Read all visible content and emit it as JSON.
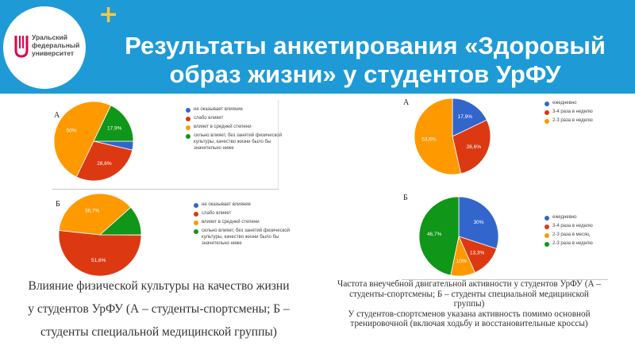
{
  "header": {
    "title_line1": "Результаты анкетирования «Здоровый",
    "title_line2": "образ жизни» у студентов УрФУ",
    "logo_line1": "Уральский",
    "logo_line2": "федеральный",
    "logo_line3": "университет",
    "bg_color": "#1e9ad6"
  },
  "chart_data": [
    {
      "id": "influence-a",
      "type": "pie",
      "panel_label": "А",
      "slices": [
        {
          "label": "не оказывает влияние",
          "value": 3.6,
          "color": "#3366cc",
          "data_label": ""
        },
        {
          "label": "слабо влияет",
          "value": 28.6,
          "color": "#dc3912",
          "data_label": "28,6%"
        },
        {
          "label": "влияет в средней степени",
          "value": 50,
          "color": "#ff9900",
          "data_label": "50%"
        },
        {
          "label": "сильно влияет, без занятий физической культуры, качество жизни было бы значительно ниже",
          "value": 17.9,
          "color": "#109618",
          "data_label": "17,9%"
        }
      ]
    },
    {
      "id": "influence-b",
      "type": "pie",
      "panel_label": "Б",
      "slices": [
        {
          "label": "не оказывает влияние",
          "value": 0.1,
          "color": "#3366cc",
          "data_label": ""
        },
        {
          "label": "слабо влияет",
          "value": 51.6,
          "color": "#dc3912",
          "data_label": "51,6%"
        },
        {
          "label": "влияет в средней степени",
          "value": 36.7,
          "color": "#ff9900",
          "data_label": "36,7%"
        },
        {
          "label": "сильно влияет, без занятий физической культуры, качество жизни было бы значительно ниже",
          "value": 11.6,
          "color": "#109618",
          "data_label": ""
        }
      ]
    },
    {
      "id": "frequency-a",
      "type": "pie",
      "panel_label": "А",
      "slices": [
        {
          "label": "ежедневно",
          "value": 17.9,
          "color": "#3366cc",
          "data_label": "17,9%"
        },
        {
          "label": "3-4 раза в неделю",
          "value": 28.6,
          "color": "#dc3912",
          "data_label": "28,6%"
        },
        {
          "label": "2-3 раза в неделю",
          "value": 53.6,
          "color": "#ff9900",
          "data_label": "53,6%"
        }
      ]
    },
    {
      "id": "frequency-b",
      "type": "pie",
      "panel_label": "Б",
      "slices": [
        {
          "label": "ежедневно",
          "value": 30,
          "color": "#3366cc",
          "data_label": "30%"
        },
        {
          "label": "3-4 раза в неделю",
          "value": 13.3,
          "color": "#dc3912",
          "data_label": "13,3%"
        },
        {
          "label": "2-3 раза в месяц",
          "value": 10,
          "color": "#ff9900",
          "data_label": "10%"
        },
        {
          "label": "2-3 раза в неделю",
          "value": 46.7,
          "color": "#109618",
          "data_label": "46,7%"
        }
      ]
    }
  ],
  "captions": {
    "left_line1": "Влияние физической культуры на качество жизни",
    "left_line2": "у студентов УрФУ (А – студенты-спортсмены; Б –",
    "left_line3": "студенты специальной медицинской группы)",
    "right_line1": "Частота внеучебной двигательной активности у студентов УрФУ (А –",
    "right_line2": "студенты-спортсмены; Б – студенты специальной медицинской",
    "right_line3": "группы)",
    "right_line4": "У студентов-спортсменов указана активность помимо основной",
    "right_line5": "тренировочной (включая ходьбу и восстановительные кроссы)"
  }
}
